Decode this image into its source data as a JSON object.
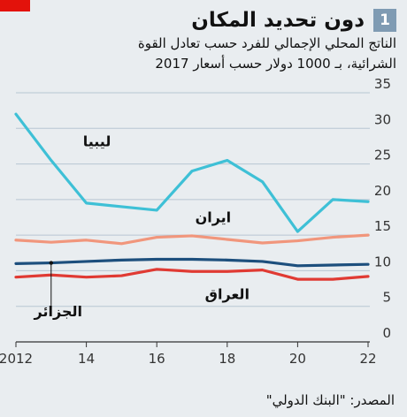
{
  "header": {
    "number": "1",
    "title": "دون تحديد المكان",
    "subtitle_line1": "الناتج المحلي الإجمالي للفرد حسب تعادل القوة",
    "subtitle_line2": "الشرائية، بـ 1000 دولار حسب أسعار 2017"
  },
  "source": "المصدر: \"البنك الدولي\"",
  "colors": {
    "accent": "#e3120b",
    "badge": "#7f9bb3"
  },
  "chart_data": {
    "type": "line",
    "x": [
      2012,
      2013,
      2014,
      2015,
      2016,
      2017,
      2018,
      2019,
      2020,
      2021,
      2022
    ],
    "x_ticks": [
      "2012",
      "14",
      "16",
      "18",
      "20",
      "22"
    ],
    "y_ticks": [
      "0",
      "5",
      "10",
      "15",
      "20",
      "25",
      "30",
      "35"
    ],
    "ylim": [
      0,
      35
    ],
    "grid": true,
    "series": [
      {
        "name": "ليبيا",
        "color": "#3ec0d6",
        "values": [
          32,
          25.5,
          19.5,
          19,
          18.5,
          24,
          25.5,
          22.5,
          15.5,
          20,
          19.7
        ]
      },
      {
        "name": "ايران",
        "color": "#f1967c",
        "values": [
          14.3,
          14,
          14.3,
          13.8,
          14.7,
          14.9,
          14.4,
          13.9,
          14.2,
          14.7,
          15
        ]
      },
      {
        "name": "الجزائر",
        "color": "#1d4f7d",
        "values": [
          11,
          11.1,
          11.3,
          11.5,
          11.6,
          11.6,
          11.5,
          11.3,
          10.7,
          10.8,
          10.9
        ]
      },
      {
        "name": "العراق",
        "color": "#e03a33",
        "values": [
          9.1,
          9.4,
          9.1,
          9.3,
          10.2,
          9.9,
          9.9,
          10.1,
          8.8,
          8.8,
          9.2
        ]
      }
    ]
  }
}
